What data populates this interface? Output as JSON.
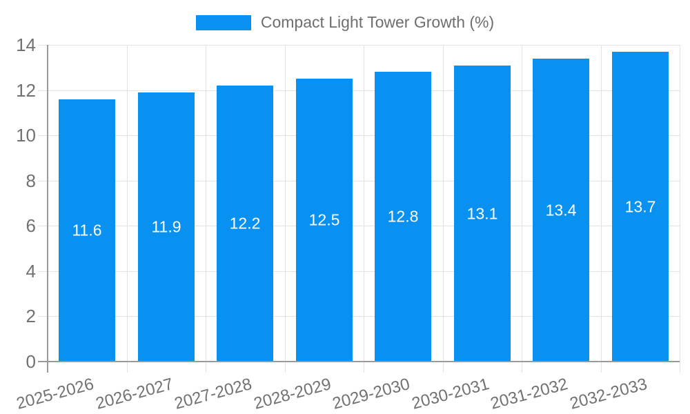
{
  "page": {
    "background": "#ffffff"
  },
  "legend": {
    "label": "Compact Light Tower Growth (%)",
    "swatch_color": "#0991f1"
  },
  "chart_data": {
    "type": "bar",
    "title": "Compact Light Tower Growth (%)",
    "categories": [
      "2025-2026",
      "2026-2027",
      "2027-2028",
      "2028-2029",
      "2029-2030",
      "2030-2031",
      "2031-2032",
      "2032-2033"
    ],
    "series": [
      {
        "name": "Compact Light Tower Growth (%)",
        "values": [
          11.6,
          11.9,
          12.2,
          12.5,
          12.8,
          13.1,
          13.4,
          13.7
        ]
      }
    ],
    "value_labels": [
      "11.6",
      "11.9",
      "12.2",
      "12.5",
      "12.8",
      "13.1",
      "13.4",
      "13.7"
    ],
    "xlabel": "",
    "ylabel": "",
    "ylim": [
      0,
      14
    ],
    "yticks": [
      0,
      2,
      4,
      6,
      8,
      10,
      12,
      14
    ],
    "grid": true,
    "legend_position": "top",
    "bar_color": "#0991f1",
    "value_label_color": "#ffffff",
    "grid_color": "#e2e2e2",
    "axis_color": "#9a9a9a",
    "tick_label_color": "#717171"
  }
}
